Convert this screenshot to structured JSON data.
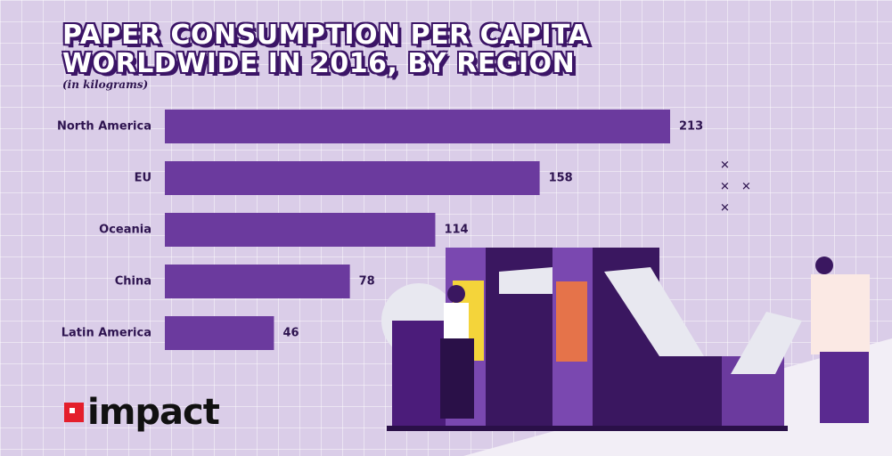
{
  "chart_data": {
    "type": "hbar",
    "title": "PAPER CONSUMPTION PER CAPITA WORLDWIDE IN 2016, BY REGION",
    "subtitle": "(in kilograms)",
    "categories": [
      "North America",
      "EU",
      "Oceania",
      "China",
      "Latin America"
    ],
    "values": [
      213,
      158,
      114,
      78,
      46
    ],
    "color": "#6b3a9e"
  },
  "brand": {
    "logo": "impact"
  }
}
